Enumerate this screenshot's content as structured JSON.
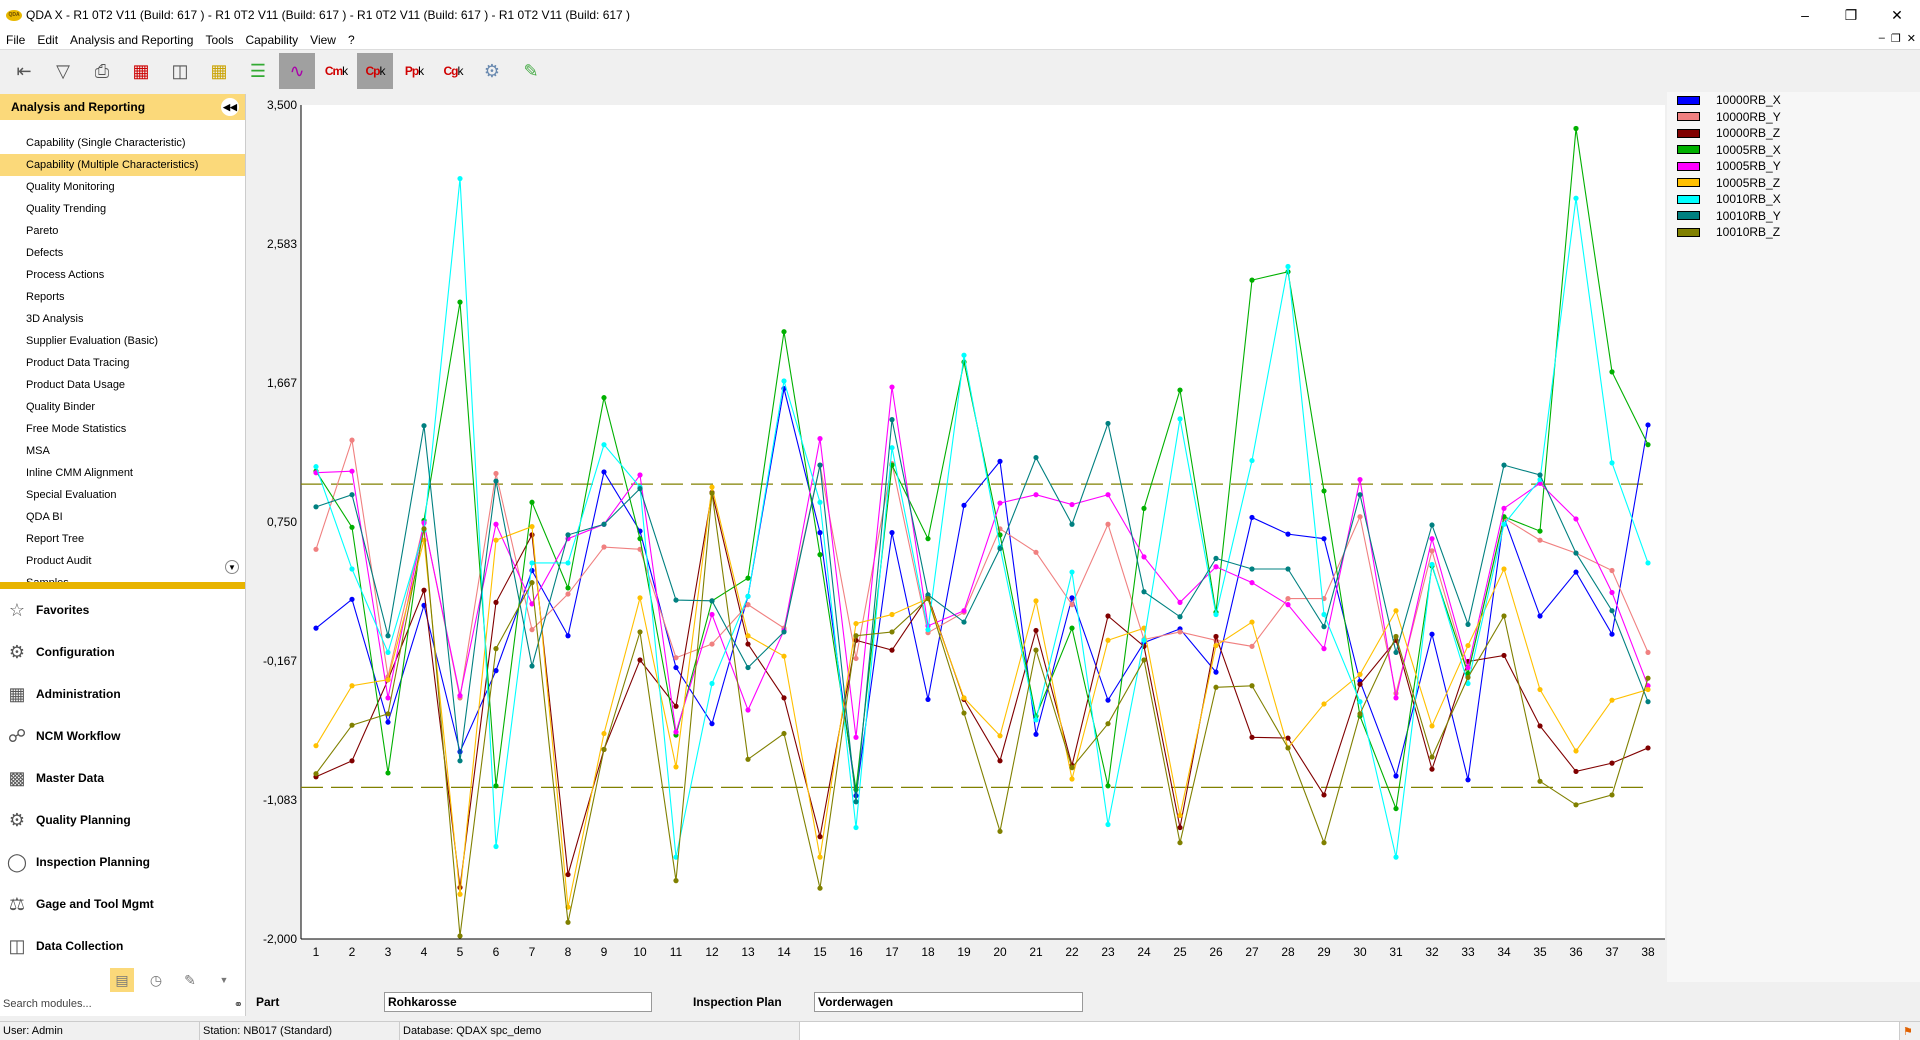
{
  "window": {
    "title": "QDA X - R1 0T2 V11 (Build: 617 ) - R1 0T2 V11 (Build: 617 ) - R1 0T2 V11 (Build: 617 ) - R1 0T2 V11 (Build: 617 )",
    "logo_text": "QDA"
  },
  "menu": [
    "File",
    "Edit",
    "Analysis and Reporting",
    "Tools",
    "Capability",
    "View",
    "?"
  ],
  "toolbar": {
    "cmk": "Cm",
    "cpk": "Cp",
    "ppk": "Pp",
    "cgk": "Cg",
    "k": "k"
  },
  "sidebar": {
    "title": "Analysis and Reporting",
    "items": [
      "Capability (Single Characteristic)",
      "Capability (Multiple Characteristics)",
      "Quality Monitoring",
      "Quality Trending",
      "Pareto",
      "Defects",
      "Process Actions",
      "Reports",
      "3D Analysis",
      "Supplier Evaluation (Basic)",
      "Product Data Tracing",
      "Product Data Usage",
      "Quality Binder",
      "Free Mode Statistics",
      "MSA",
      "Inline CMM Alignment",
      "Special Evaluation",
      "QDA BI",
      "Report Tree",
      "Product Audit",
      "Samples"
    ],
    "selected_index": 1,
    "sections": [
      "Favorites",
      "Configuration",
      "Administration",
      "NCM Workflow",
      "Master Data",
      "Quality Planning",
      "Inspection Planning",
      "Gage and Tool Mgmt",
      "Data Collection"
    ],
    "search_placeholder": "Search modules..."
  },
  "bottom": {
    "part_label": "Part",
    "part_value": "Rohkarosse",
    "plan_label": "Inspection Plan",
    "plan_value": "Vorderwagen"
  },
  "status": {
    "user": "User: Admin",
    "station": "Station: NB017 (Standard)",
    "database": "Database: QDAX spc_demo"
  },
  "chart_data": {
    "type": "line",
    "ylim": [
      -2000,
      3500
    ],
    "ytick_labels": [
      "3,500",
      "2,583",
      "1,667",
      "0,750",
      "-0,167",
      "-1,083",
      "-2,000"
    ],
    "yticks": [
      3500,
      2583,
      1667,
      750,
      -167,
      -1083,
      -2000
    ],
    "x": [
      1,
      2,
      3,
      4,
      5,
      6,
      7,
      8,
      9,
      10,
      11,
      12,
      13,
      14,
      15,
      16,
      17,
      18,
      19,
      20,
      21,
      22,
      23,
      24,
      25,
      26,
      27,
      28,
      29,
      30,
      31,
      32,
      33,
      34,
      35,
      36,
      37,
      38
    ],
    "control_limits": {
      "upper": 1000,
      "lower": -1000,
      "color": "#808000"
    },
    "legend": "right",
    "grid": false,
    "series": [
      {
        "name": "10000RB_X",
        "color": "#0000ff",
        "values": [
          50,
          240,
          -570,
          200,
          -765,
          -230,
          430,
          0,
          1080,
          690,
          -210,
          -580,
          260,
          1630,
          680,
          -1055,
          680,
          -420,
          860,
          1150,
          -650,
          250,
          -425,
          -45,
          45,
          -240,
          780,
          670,
          640,
          -300,
          -925,
          10,
          -950,
          780,
          130,
          420,
          10,
          1390
        ]
      },
      {
        "name": "10000RB_Y",
        "color": "#f08080",
        "values": [
          570,
          1290,
          -270,
          745,
          -410,
          1070,
          40,
          275,
          585,
          570,
          -145,
          -55,
          205,
          50,
          1125,
          -150,
          1135,
          20,
          155,
          705,
          550,
          205,
          735,
          -25,
          25,
          -30,
          -70,
          245,
          245,
          785,
          -380,
          560,
          -250,
          775,
          630,
          545,
          430,
          -110
        ]
      },
      {
        "name": "10000RB_Z",
        "color": "#800000",
        "values": [
          -930,
          -825,
          -290,
          300,
          -1660,
          220,
          665,
          -1575,
          -750,
          -160,
          -465,
          945,
          -55,
          -410,
          -1325,
          -30,
          -95,
          260,
          -420,
          -825,
          35,
          -855,
          130,
          -70,
          -1265,
          -5,
          -670,
          -675,
          -1050,
          -320,
          -30,
          -880,
          -170,
          -130,
          -595,
          -895,
          -840,
          -740
        ]
      },
      {
        "name": "10005RB_X",
        "color": "#00b000",
        "values": [
          1085,
          715,
          -905,
          760,
          2200,
          -990,
          880,
          315,
          1570,
          640,
          -655,
          230,
          380,
          2005,
          535,
          -1015,
          1125,
          640,
          1805,
          665,
          -530,
          50,
          -990,
          840,
          1620,
          155,
          2345,
          2400,
          955,
          -530,
          -1140,
          460,
          -250,
          785,
          690,
          3345,
          1740,
          1260
        ]
      },
      {
        "name": "10005RB_Y",
        "color": "#ff00ff",
        "values": [
          1075,
          1085,
          -410,
          745,
          -395,
          735,
          210,
          640,
          735,
          1060,
          -635,
          140,
          -490,
          35,
          1300,
          -670,
          1640,
          65,
          165,
          875,
          930,
          865,
          930,
          520,
          220,
          455,
          350,
          205,
          -85,
          1030,
          -410,
          640,
          -210,
          840,
          1005,
          770,
          285,
          -330
        ]
      },
      {
        "name": "10005RB_Z",
        "color": "#ffc000",
        "values": [
          -725,
          -330,
          -290,
          630,
          -1705,
          630,
          720,
          -1790,
          -645,
          250,
          -865,
          980,
          0,
          -135,
          -1460,
          80,
          140,
          245,
          -410,
          -660,
          230,
          -945,
          -30,
          50,
          -1185,
          -65,
          90,
          -740,
          -450,
          -255,
          165,
          -595,
          -65,
          440,
          -355,
          -760,
          -425,
          -355
        ]
      },
      {
        "name": "10010RB_X",
        "color": "#00ffff",
        "values": [
          1115,
          440,
          -110,
          695,
          3015,
          -1390,
          480,
          480,
          1260,
          980,
          -1460,
          -315,
          260,
          1680,
          880,
          -1265,
          1240,
          40,
          1850,
          585,
          -555,
          420,
          -1245,
          -30,
          1430,
          140,
          1155,
          2435,
          140,
          -435,
          -1460,
          470,
          -315,
          735,
          1030,
          2885,
          1140,
          480
        ]
      },
      {
        "name": "10010RB_Y",
        "color": "#008080",
        "values": [
          850,
          930,
          0,
          1385,
          -825,
          1020,
          -200,
          665,
          735,
          970,
          235,
          230,
          -210,
          25,
          1125,
          -1095,
          1425,
          270,
          90,
          575,
          1175,
          735,
          1400,
          290,
          125,
          510,
          440,
          440,
          60,
          930,
          -110,
          730,
          75,
          1125,
          1060,
          545,
          165,
          -435
        ]
      },
      {
        "name": "10010RB_Z",
        "color": "#808000",
        "values": [
          -910,
          -590,
          -515,
          705,
          -1980,
          -85,
          350,
          -1890,
          -750,
          25,
          -1615,
          940,
          -815,
          -645,
          -1665,
          0,
          25,
          245,
          -510,
          -1290,
          -95,
          -870,
          -580,
          -160,
          -1365,
          -340,
          -330,
          -740,
          -1365,
          -515,
          -5,
          -800,
          -275,
          130,
          -960,
          -1115,
          -1050,
          -280
        ]
      }
    ]
  }
}
